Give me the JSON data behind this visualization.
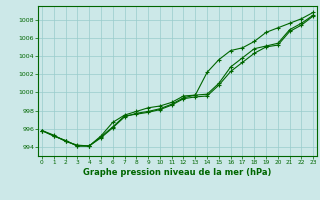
{
  "title": "Graphe pression niveau de la mer (hPa)",
  "bg_color": "#cce8e8",
  "grid_color": "#99cccc",
  "line_color": "#006600",
  "xlim": [
    -0.3,
    23.3
  ],
  "ylim": [
    993.0,
    1009.5
  ],
  "yticks": [
    994,
    996,
    998,
    1000,
    1002,
    1004,
    1006,
    1008
  ],
  "xticks": [
    0,
    1,
    2,
    3,
    4,
    5,
    6,
    7,
    8,
    9,
    10,
    11,
    12,
    13,
    14,
    15,
    16,
    17,
    18,
    19,
    20,
    21,
    22,
    23
  ],
  "line1": [
    995.8,
    995.3,
    994.6,
    994.2,
    994.1,
    995.1,
    996.2,
    997.4,
    997.6,
    997.8,
    998.1,
    998.6,
    999.3,
    999.5,
    999.6,
    1000.8,
    1002.3,
    1003.3,
    1004.3,
    1005.0,
    1005.2,
    1006.7,
    1007.4,
    1008.4
  ],
  "line2": [
    995.8,
    995.2,
    994.7,
    994.1,
    994.1,
    995.0,
    996.1,
    997.3,
    997.7,
    997.9,
    998.2,
    998.7,
    999.4,
    999.7,
    999.8,
    1001.0,
    1002.8,
    1003.8,
    1004.8,
    1005.1,
    1005.4,
    1006.9,
    1007.6,
    1008.5
  ],
  "line3": [
    995.8,
    995.2,
    994.7,
    994.1,
    994.1,
    995.2,
    996.7,
    997.5,
    997.9,
    998.3,
    998.5,
    998.9,
    999.6,
    999.7,
    1002.2,
    1003.6,
    1004.6,
    1004.9,
    1005.6,
    1006.6,
    1007.1,
    1007.6,
    1008.1,
    1008.8
  ]
}
